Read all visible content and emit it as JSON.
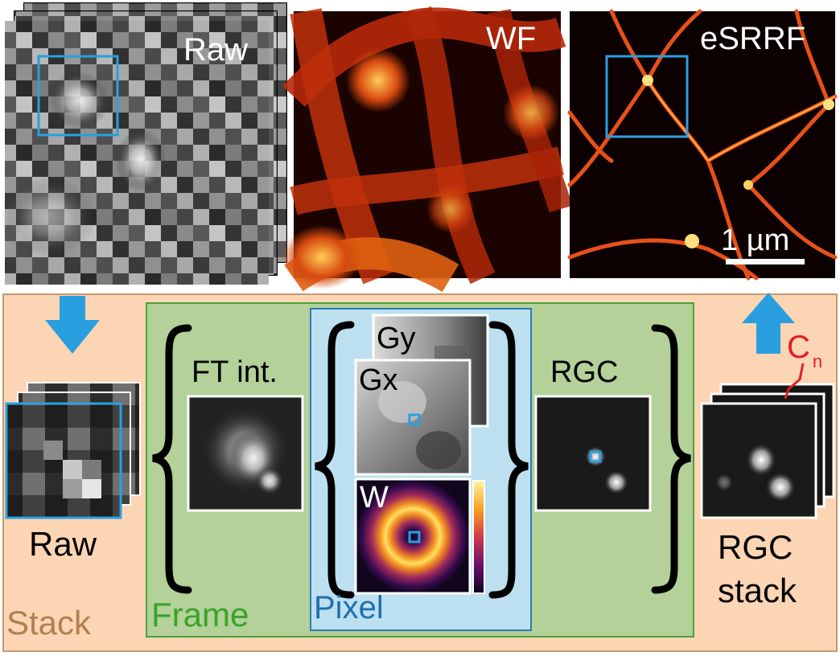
{
  "top_panels": {
    "raw_label": "Raw",
    "wf_label": "WF",
    "esrrf_label": "eSRRF",
    "scale_bar_label": "1 µm"
  },
  "stack_box": {
    "label": "Stack",
    "raw_label": "Raw",
    "rgc_stack_label_line1": "RGC",
    "rgc_stack_label_line2": "stack",
    "cn_label": "C",
    "cn_subscript": "n"
  },
  "frame_box": {
    "label": "Frame",
    "ft_label": "FT int.",
    "rgc_label": "RGC"
  },
  "pixel_box": {
    "label": "Pixel",
    "gy_label": "Gy",
    "gx_label": "Gx",
    "w_label": "W"
  },
  "colors": {
    "stack_fill": "#fcd5b5",
    "stack_border": "#c69a6d",
    "stack_text": "#b08050",
    "frame_fill": "#b3d199",
    "frame_border": "#4aa33a",
    "frame_text": "#3aa32a",
    "pixel_fill": "#bde0f0",
    "pixel_border": "#2a7ab8",
    "pixel_text": "#1f6fb0",
    "accent_blue": "#2a9fe0",
    "cn_red": "#e02020"
  }
}
